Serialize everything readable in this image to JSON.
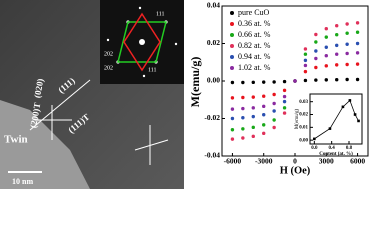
{
  "micrograph": {
    "labels": [
      "Twin",
      "(111)",
      "(111)T",
      "(020)",
      "(200)T",
      "10 nm"
    ],
    "diffraction_labels": [
      "111",
      "202",
      "202",
      "111"
    ]
  },
  "chart_data": [
    {
      "type": "scatter",
      "x_label": "H (Oe)",
      "y_label": "M(emu/g)",
      "x": [
        -6000,
        -5000,
        -4000,
        -3000,
        -2000,
        -1000,
        0,
        1000,
        2000,
        3000,
        4000,
        5000,
        6000
      ],
      "series": [
        {
          "name": "pure CuO",
          "color": "#000000",
          "values": [
            -0.0008,
            -0.0008,
            -0.0007,
            -0.0006,
            -0.0005,
            -0.0003,
            0,
            0.0003,
            0.0005,
            0.0006,
            0.0007,
            0.0008,
            0.0008
          ]
        },
        {
          "name": "0.36 at. %",
          "color": "#e8141e",
          "values": [
            -0.009,
            -0.0088,
            -0.0086,
            -0.0081,
            -0.0072,
            -0.005,
            0,
            0.005,
            0.0072,
            0.0081,
            0.0086,
            0.0088,
            0.009
          ]
        },
        {
          "name": "0.66 at. %",
          "color": "#18a818",
          "values": [
            -0.026,
            -0.0255,
            -0.0247,
            -0.0234,
            -0.0208,
            -0.0143,
            0,
            0.0143,
            0.0208,
            0.0234,
            0.0247,
            0.0255,
            0.026
          ]
        },
        {
          "name": "0.82 at. %",
          "color": "#e0305a",
          "values": [
            -0.031,
            -0.0304,
            -0.0295,
            -0.0279,
            -0.0248,
            -0.0171,
            0,
            0.0171,
            0.0248,
            0.0279,
            0.0295,
            0.0304,
            0.031
          ]
        },
        {
          "name": "0.94 at. %",
          "color": "#2a4fb0",
          "values": [
            -0.02,
            -0.0196,
            -0.019,
            -0.018,
            -0.016,
            -0.011,
            0,
            0.011,
            0.016,
            0.018,
            0.019,
            0.0196,
            0.02
          ]
        },
        {
          "name": "1.02 at. %",
          "color": "#8a2aa0",
          "values": [
            -0.015,
            -0.0147,
            -0.0143,
            -0.0135,
            -0.012,
            -0.0083,
            0,
            0.0083,
            0.012,
            0.0135,
            0.0143,
            0.0147,
            0.015
          ]
        }
      ],
      "xlim": [
        -7000,
        7000
      ],
      "ylim": [
        -0.04,
        0.04
      ],
      "xticks": [
        -6000,
        -3000,
        0,
        3000,
        6000
      ],
      "yticks": [
        -0.04,
        -0.02,
        {
          "value": 0,
          "label": "0.00"
        },
        0.02,
        0.04
      ],
      "legend": "upper left"
    },
    {
      "type": "line",
      "x_label": "Content (at. %)",
      "y_label": "M(emu/g)",
      "color": "#000000",
      "x": [
        0,
        0.36,
        0.66,
        0.82,
        0.94,
        1.02
      ],
      "values": [
        0.001,
        0.009,
        0.026,
        0.031,
        0.02,
        0.015
      ],
      "xlim": [
        -0.1,
        1.1
      ],
      "ylim": [
        -0.003,
        0.036
      ],
      "xticks": [
        {
          "value": 0,
          "label": "0.0"
        },
        0.4,
        0.8
      ],
      "yticks": [
        {
          "value": 0,
          "label": "0.00"
        },
        0.01,
        0.02,
        0.03
      ]
    }
  ]
}
